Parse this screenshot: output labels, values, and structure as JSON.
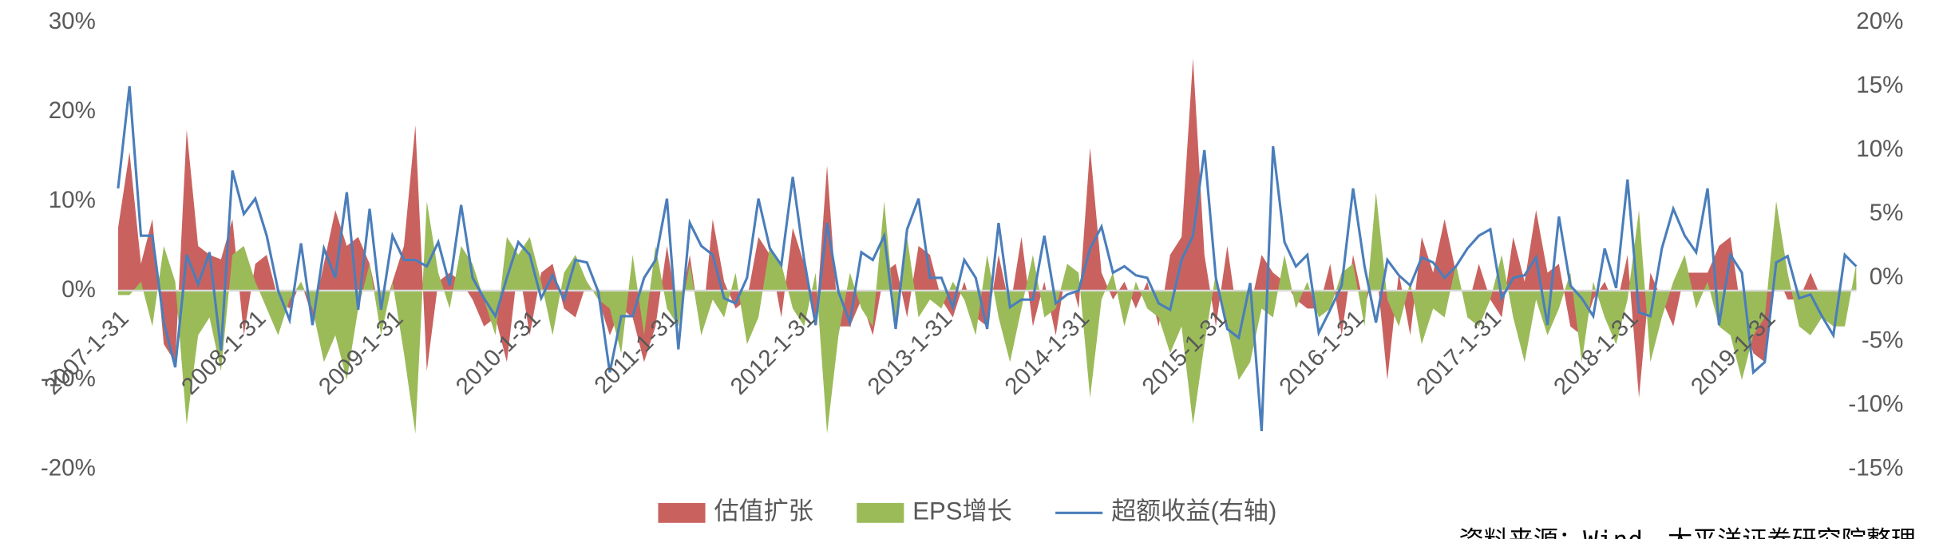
{
  "chart_data": {
    "type": "combo",
    "categories": [
      "2007-1-31",
      null,
      null,
      null,
      null,
      null,
      null,
      null,
      null,
      null,
      null,
      null,
      "2008-1-31",
      null,
      null,
      null,
      null,
      null,
      null,
      null,
      null,
      null,
      null,
      null,
      "2009-1-31",
      null,
      null,
      null,
      null,
      null,
      null,
      null,
      null,
      null,
      null,
      null,
      "2010-1-31",
      null,
      null,
      null,
      null,
      null,
      null,
      null,
      null,
      null,
      null,
      null,
      "2011-1-31",
      null,
      null,
      null,
      null,
      null,
      null,
      null,
      null,
      null,
      null,
      null,
      "2012-1-31",
      null,
      null,
      null,
      null,
      null,
      null,
      null,
      null,
      null,
      null,
      null,
      "2013-1-31",
      null,
      null,
      null,
      null,
      null,
      null,
      null,
      null,
      null,
      null,
      null,
      "2014-1-31",
      null,
      null,
      null,
      null,
      null,
      null,
      null,
      null,
      null,
      null,
      null,
      "2015-1-31",
      null,
      null,
      null,
      null,
      null,
      null,
      null,
      null,
      null,
      null,
      null,
      "2016-1-31",
      null,
      null,
      null,
      null,
      null,
      null,
      null,
      null,
      null,
      null,
      null,
      "2017-1-31",
      null,
      null,
      null,
      null,
      null,
      null,
      null,
      null,
      null,
      null,
      null,
      "2018-1-31",
      null,
      null,
      null,
      null,
      null,
      null,
      null,
      null,
      null,
      null,
      null,
      "2019-1-31",
      null,
      null,
      null,
      null,
      null,
      null,
      null,
      null
    ],
    "series": [
      {
        "name": "估值扩张",
        "type": "area",
        "color": "#c9625f",
        "values": [
          7,
          15.5,
          3,
          8,
          -6,
          -8,
          18,
          5,
          4,
          3.5,
          8,
          -5,
          3,
          4,
          -1,
          -2,
          1,
          -3,
          3,
          9,
          5,
          6,
          3,
          -3,
          1,
          5,
          18.5,
          -9,
          1,
          2,
          1,
          -1,
          -4,
          -3,
          -8,
          3,
          -5,
          2,
          3,
          -2,
          -3,
          1,
          -1,
          -5,
          -2,
          -3,
          -8,
          -4,
          5,
          -3,
          4,
          -5,
          8,
          1,
          -2,
          -1,
          6,
          4,
          -3,
          7,
          3,
          -4,
          14,
          -4,
          -4,
          -1,
          -5,
          2,
          3,
          -3,
          5,
          4,
          -1,
          -3,
          1,
          -3,
          -4,
          4,
          -2,
          6,
          -4,
          1,
          -5,
          3,
          -2,
          16,
          2,
          -1,
          1,
          -2,
          1,
          -4,
          4,
          6,
          26,
          4,
          -4,
          5,
          -4,
          -2,
          4,
          2,
          1,
          -1,
          -2,
          -2,
          3,
          -5,
          4,
          -2,
          3,
          -10,
          2,
          -5,
          6,
          2,
          8,
          2,
          -2,
          3,
          -1,
          -3,
          6,
          1,
          9,
          2,
          3,
          -4,
          -5,
          -1,
          1,
          -2,
          4,
          -12,
          2,
          -1,
          -4,
          2,
          2,
          2,
          5,
          6,
          -3,
          -7,
          -8,
          2,
          -1,
          -1,
          2,
          -1,
          -3,
          -1,
          1
        ]
      },
      {
        "name": "EPS增长",
        "type": "area",
        "color": "#9bbb59",
        "values": [
          -0.5,
          -0.5,
          1,
          -4,
          5,
          1,
          -15,
          -5,
          -3,
          -9,
          4,
          5,
          1,
          -2,
          -5,
          -1,
          1,
          -2,
          -8,
          -5,
          -10,
          -2,
          3,
          -5,
          1,
          -7,
          -16,
          10,
          2,
          -2,
          5,
          3,
          -1,
          -5,
          6,
          4,
          6,
          1,
          -5,
          2,
          4,
          1,
          -1,
          -2,
          -7,
          4,
          -5,
          5,
          -2,
          -4,
          3,
          -5,
          -1,
          -3,
          2,
          -6,
          -3,
          5,
          3,
          -2,
          -4,
          2,
          -16,
          -5,
          2,
          -2,
          -4,
          10,
          -4,
          6,
          -3,
          -1,
          -2,
          1,
          -1,
          -5,
          4,
          -3,
          -8,
          -2,
          4,
          -3,
          -2,
          3,
          2,
          -12,
          -1,
          2,
          -4,
          1,
          -2,
          -3,
          -7,
          -4,
          -15,
          -6,
          2,
          -4,
          -10,
          -8,
          -2,
          -3,
          4,
          -2,
          1,
          -3,
          -2,
          2,
          3,
          -4,
          11,
          -1,
          -4,
          1,
          -6,
          -2,
          -3,
          3,
          -3,
          -4,
          -1,
          4,
          -3,
          -8,
          -1,
          -5,
          -2,
          2,
          -8,
          1,
          -3,
          -6,
          -1,
          9,
          -8,
          -3,
          1,
          4,
          -2,
          1,
          -4,
          -5,
          -10,
          -5,
          -3,
          10,
          2,
          -4,
          -5,
          -3,
          -4,
          -4,
          3
        ]
      },
      {
        "name": "超额收益(右轴)",
        "type": "line",
        "axis": "y2",
        "color": "#4a7ebb",
        "values": [
          7,
          15,
          3.3,
          3.3,
          -3.5,
          -7,
          1.8,
          -0.5,
          2,
          -5.7,
          8.4,
          5,
          6.2,
          3.3,
          -1,
          -3.3,
          2.7,
          -3.7,
          2.3,
          0,
          6.7,
          -2.5,
          5.4,
          -2.5,
          3.3,
          1.4,
          1.4,
          0.9,
          2.8,
          -0.6,
          5.7,
          0,
          -1.6,
          -3,
          0,
          2.8,
          1.8,
          -1.6,
          0.2,
          -1.7,
          1.4,
          1.2,
          -1.1,
          -7.4,
          -3,
          -3,
          0,
          1.4,
          6.2,
          -5.6,
          4.3,
          2.5,
          1.8,
          -1.6,
          -2,
          0,
          6.2,
          2.3,
          1,
          7.9,
          1.4,
          -3.7,
          4.3,
          -1.1,
          -3.5,
          2,
          1.4,
          3.3,
          -4,
          3.8,
          6.2,
          0,
          0,
          -2.3,
          1.4,
          0,
          -4,
          4.3,
          -2.3,
          -1.7,
          -1.7,
          3.3,
          -2,
          -1.3,
          -1,
          2.3,
          4,
          0.4,
          0.9,
          0.2,
          0,
          -2,
          -2.5,
          1.4,
          3.3,
          10,
          0,
          -4,
          -4.7,
          -0.4,
          -12,
          10.3,
          2.8,
          0.9,
          1.8,
          -4.3,
          -2.5,
          -0.6,
          7,
          0.9,
          -3.5,
          1.4,
          0.2,
          -0.6,
          1.6,
          1.2,
          0,
          0.9,
          2.3,
          3.3,
          3.8,
          -1.6,
          0,
          0.2,
          1.6,
          -3.7,
          4.8,
          -0.6,
          -1.6,
          -3,
          2.3,
          -0.8,
          7.7,
          -2.7,
          -3,
          2.3,
          5.4,
          3.3,
          2,
          7,
          -3.7,
          1.8,
          0.4,
          -7.4,
          -6.6,
          1.2,
          1.7,
          -1.6,
          -1.3,
          -3,
          -4.5,
          1.8,
          0.9
        ]
      }
    ],
    "ylim": [
      -20,
      30
    ],
    "yticks": [
      {
        "value": -20,
        "label": "-20%"
      },
      {
        "value": -10,
        "label": "-10%"
      },
      {
        "value": 0,
        "label": "0%"
      },
      {
        "value": 10,
        "label": "10%"
      },
      {
        "value": 20,
        "label": "20%"
      },
      {
        "value": 30,
        "label": "30%"
      }
    ],
    "y2lim": [
      -15,
      20
    ],
    "y2ticks": [
      {
        "value": -15,
        "label": "-15%"
      },
      {
        "value": -10,
        "label": "-10%"
      },
      {
        "value": -5,
        "label": "-5%"
      },
      {
        "value": 0,
        "label": "0%"
      },
      {
        "value": 5,
        "label": "5%"
      },
      {
        "value": 10,
        "label": "10%"
      },
      {
        "value": 15,
        "label": "15%"
      },
      {
        "value": 20,
        "label": "20%"
      }
    ],
    "legend": "bottom",
    "source": "资料来源：Wind，太平洋证券研究院整理"
  }
}
